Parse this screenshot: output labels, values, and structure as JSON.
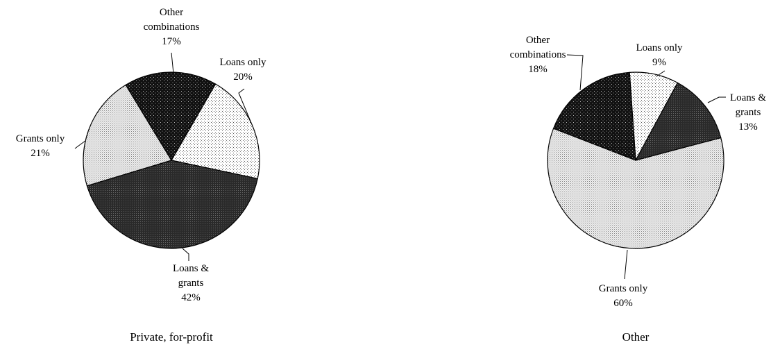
{
  "chart_data": [
    {
      "type": "pie",
      "title": "Private, for-profit",
      "categories": [
        "Loans only",
        "Loans & grants",
        "Grants only",
        "Other combinations"
      ],
      "values": [
        20,
        42,
        21,
        17
      ],
      "value_labels": [
        "20%",
        "42%",
        "21%",
        "17%"
      ]
    },
    {
      "type": "pie",
      "title": "Other",
      "categories": [
        "Loans only",
        "Loans & grants",
        "Grants only",
        "Other combinations"
      ],
      "values": [
        9,
        13,
        60,
        18
      ],
      "value_labels": [
        "9%",
        "13%",
        "60%",
        "18%"
      ]
    }
  ]
}
